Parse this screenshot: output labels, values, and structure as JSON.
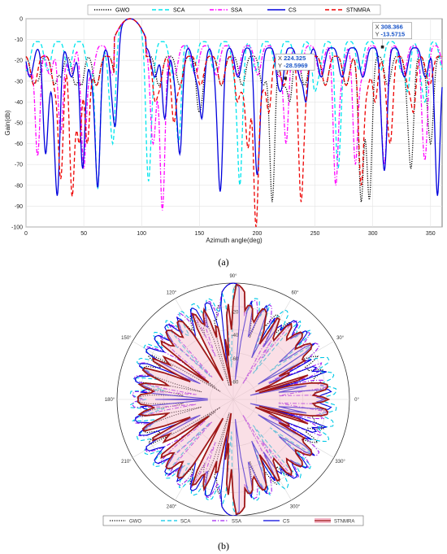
{
  "chart_data": [
    {
      "type": "line",
      "xlabel": "Azimuth angle(deg)",
      "ylabel": "Gain(db)",
      "xlim": [
        0,
        360
      ],
      "ylim": [
        -100,
        0
      ],
      "xticks": [
        "0",
        "50",
        "100",
        "150",
        "200",
        "250",
        "300",
        "350"
      ],
      "yticks": [
        "0",
        "-10",
        "-20",
        "-30",
        "-40",
        "-50",
        "-60",
        "-70",
        "-80",
        "-90",
        "-100"
      ],
      "grid": true,
      "legend_position": "top",
      "series": [
        {
          "name": "GWO",
          "style": "dotted",
          "color": "#000000",
          "sidelobe_level": -18,
          "nulls": [
            [
              10,
              -30
            ],
            [
              30,
              -28
            ],
            [
              48,
              -32
            ],
            [
              150,
              -45
            ],
            [
              213,
              -88
            ],
            [
              228,
              -40
            ],
            [
              290,
              -88
            ],
            [
              297,
              -87
            ],
            [
              333,
              -72
            ],
            [
              350,
              -60
            ]
          ]
        },
        {
          "name": "SCA",
          "style": "dashed",
          "color": "#00e5ee",
          "sidelobe_level": -11,
          "nulls": [
            [
              62,
              -82
            ],
            [
              75,
              -60
            ],
            [
              106,
              -78
            ],
            [
              132,
              -60
            ],
            [
              185,
              -80
            ],
            [
              250,
              -35
            ],
            [
              270,
              -72
            ],
            [
              330,
              -35
            ],
            [
              345,
              -40
            ]
          ]
        },
        {
          "name": "SSA",
          "style": "dashdot",
          "color": "#ff00ff",
          "sidelobe_level": -13,
          "nulls": [
            [
              10,
              -66
            ],
            [
              30,
              -55
            ],
            [
              50,
              -72
            ],
            [
              110,
              -60
            ],
            [
              118,
              -92
            ],
            [
              225,
              -60
            ],
            [
              268,
              -80
            ],
            [
              285,
              -70
            ],
            [
              310,
              -70
            ],
            [
              345,
              -68
            ]
          ]
        },
        {
          "name": "CS",
          "style": "solid",
          "color": "#0000dd",
          "sidelobe_level": -14,
          "nulls": [
            [
              17,
              -65
            ],
            [
              25,
              -34
            ],
            [
              27,
              -85
            ],
            [
              49,
              -72
            ],
            [
              62,
              -81
            ],
            [
              77,
              -52
            ],
            [
              120,
              -48
            ],
            [
              133,
              -65
            ],
            [
              152,
              -48
            ],
            [
              168,
              -83
            ],
            [
              200,
              -75
            ],
            [
              220,
              -35
            ],
            [
              242,
              -40
            ],
            [
              310,
              -73
            ],
            [
              356,
              -85
            ]
          ]
        },
        {
          "name": "STNMRA",
          "style": "dashed",
          "color": "#ee0000",
          "sidelobe_level": -18,
          "nulls": [
            [
              30,
              -77
            ],
            [
              40,
              -86
            ],
            [
              46,
              -60
            ],
            [
              53,
              -60
            ],
            [
              112,
              -40
            ],
            [
              128,
              -50
            ],
            [
              183,
              -40
            ],
            [
              192,
              -62
            ],
            [
              199,
              -100
            ],
            [
              210,
              -45
            ],
            [
              238,
              -88
            ],
            [
              290,
              -80
            ],
            [
              302,
              -40
            ],
            [
              315,
              -60
            ],
            [
              335,
              -45
            ]
          ]
        }
      ],
      "main_lobe": {
        "center": 90,
        "peak": 0
      },
      "annotations": [
        {
          "X": "308.366",
          "Y": "-13.5715"
        },
        {
          "X": "224.325",
          "Y": "-28.5969"
        }
      ],
      "caption": "(a)"
    },
    {
      "type": "polar",
      "angle_labels": [
        "0°",
        "30°",
        "60°",
        "90°",
        "120°",
        "150°",
        "180°",
        "210°",
        "240°",
        "270°",
        "300°",
        "330°"
      ],
      "radial_labels": [
        "0",
        "-20",
        "-40",
        "-60",
        "-80"
      ],
      "radial_range": [
        -100,
        0
      ],
      "legend_position": "bottom",
      "series": [
        {
          "name": "GWO",
          "style": "dotted",
          "color": "#000000"
        },
        {
          "name": "SCA",
          "style": "dashed",
          "color": "#00c8e6"
        },
        {
          "name": "SSA",
          "style": "dashdot",
          "color": "#a020f0"
        },
        {
          "name": "CS",
          "style": "solid",
          "color": "#0000dd"
        },
        {
          "name": "STNMRA",
          "style": "solid",
          "color": "#a01818",
          "fill": "#f4b8c8"
        }
      ],
      "caption": "(b)"
    }
  ]
}
